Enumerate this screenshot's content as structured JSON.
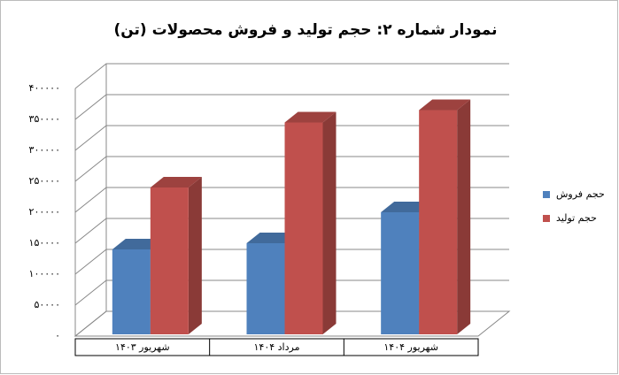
{
  "chart_data": {
    "type": "bar3d",
    "title": "نمودار شماره ۲: حجم تولید و فروش محصولات (تن)",
    "categories": [
      "شهریور ۱۴۰۳",
      "مرداد ۱۴۰۴",
      "شهریور ۱۴۰۴"
    ],
    "series": [
      {
        "name": "حجم فروش",
        "color": "#4f81bd",
        "values": [
          140000,
          150000,
          200000
        ]
      },
      {
        "name": "حجم تولید",
        "color": "#c0504d",
        "values": [
          240000,
          345000,
          365000
        ]
      }
    ],
    "ylim": [
      0,
      400000
    ],
    "yticks": [
      {
        "value": 0,
        "label": "۰"
      },
      {
        "value": 50000,
        "label": "۵۰۰۰۰"
      },
      {
        "value": 100000,
        "label": "۱۰۰۰۰۰"
      },
      {
        "value": 150000,
        "label": "۱۵۰۰۰۰"
      },
      {
        "value": 200000,
        "label": "۲۰۰۰۰۰"
      },
      {
        "value": 250000,
        "label": "۲۵۰۰۰۰"
      },
      {
        "value": 300000,
        "label": "۳۰۰۰۰۰"
      },
      {
        "value": 350000,
        "label": "۳۵۰۰۰۰"
      },
      {
        "value": 400000,
        "label": "۴۰۰۰۰۰"
      }
    ],
    "grid": true,
    "legend": "right"
  }
}
